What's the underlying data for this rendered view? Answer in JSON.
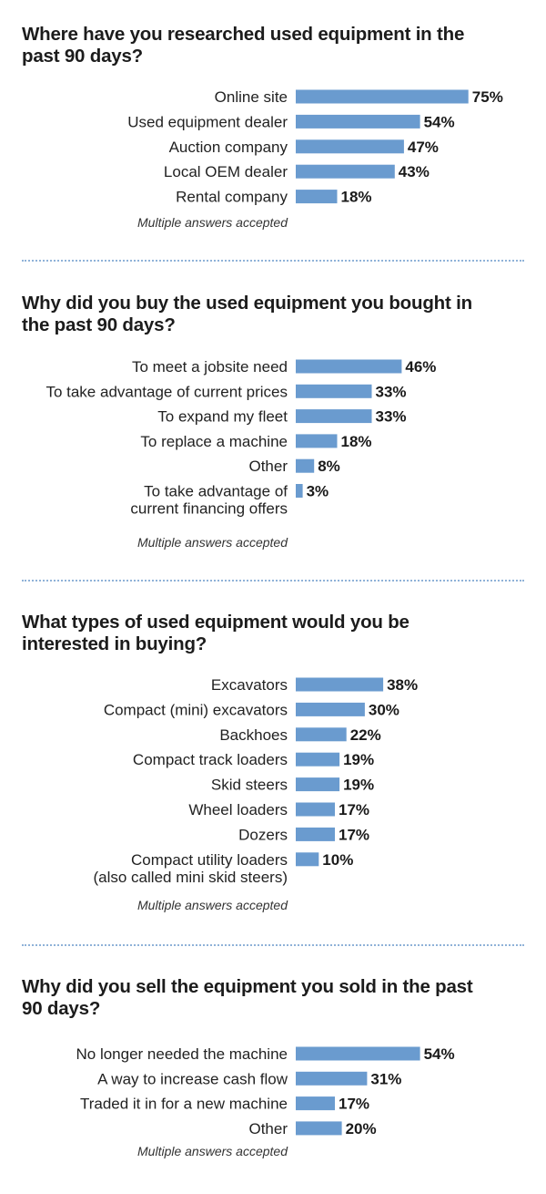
{
  "colors": {
    "bar": "#6a9bcf",
    "divider": "#8fb2d8",
    "text": "#1c1c1c"
  },
  "chart_data": [
    {
      "type": "bar",
      "orientation": "horizontal",
      "title": "Where have you researched used equipment in the past 90 days?",
      "categories": [
        "Online site",
        "Used equipment dealer",
        "Auction company",
        "Local OEM dealer",
        "Rental company"
      ],
      "values": [
        75,
        54,
        47,
        43,
        18
      ],
      "value_labels": [
        "75%",
        "54%",
        "47%",
        "43%",
        "18%"
      ],
      "note": "Multiple answers accepted"
    },
    {
      "type": "bar",
      "orientation": "horizontal",
      "title": "Why did you buy the used equipment you bought in the past 90 days?",
      "categories": [
        "To meet a jobsite need",
        "To take advantage of current prices",
        "To expand my fleet",
        "To replace a machine",
        "Other",
        "To take advantage of current financing offers"
      ],
      "category_lines": [
        [
          "To meet a jobsite need"
        ],
        [
          "To take advantage of current prices"
        ],
        [
          "To expand my fleet"
        ],
        [
          "To replace a machine"
        ],
        [
          "Other"
        ],
        [
          "To take advantage of",
          "current financing offers"
        ]
      ],
      "values": [
        46,
        33,
        33,
        18,
        8,
        3
      ],
      "value_labels": [
        "46%",
        "33%",
        "33%",
        "18%",
        "8%",
        "3%"
      ],
      "note": "Multiple answers accepted"
    },
    {
      "type": "bar",
      "orientation": "horizontal",
      "title": "What types of used equipment would you be interested in buying?",
      "categories": [
        "Excavators",
        "Compact (mini) excavators",
        "Backhoes",
        "Compact track loaders",
        "Skid steers",
        "Wheel loaders",
        "Dozers",
        "Compact utility loaders (also called mini skid steers)"
      ],
      "category_lines": [
        [
          "Excavators"
        ],
        [
          "Compact (mini) excavators"
        ],
        [
          "Backhoes"
        ],
        [
          "Compact track loaders"
        ],
        [
          "Skid steers"
        ],
        [
          "Wheel loaders"
        ],
        [
          "Dozers"
        ],
        [
          "Compact utility loaders",
          "(also called mini skid steers)"
        ]
      ],
      "values": [
        38,
        30,
        22,
        19,
        19,
        17,
        17,
        10
      ],
      "value_labels": [
        "38%",
        "30%",
        "22%",
        "19%",
        "19%",
        "17%",
        "17%",
        "10%"
      ],
      "note": "Multiple answers accepted"
    },
    {
      "type": "bar",
      "orientation": "horizontal",
      "title": "Why did you sell the equipment you sold in the past 90 days?",
      "categories": [
        "No longer needed the machine",
        "A way to increase cash flow",
        "Traded it in for a new machine",
        "Other"
      ],
      "values": [
        54,
        31,
        17,
        20
      ],
      "value_labels": [
        "54%",
        "31%",
        "17%",
        "20%"
      ],
      "note": "Multiple answers accepted"
    }
  ]
}
